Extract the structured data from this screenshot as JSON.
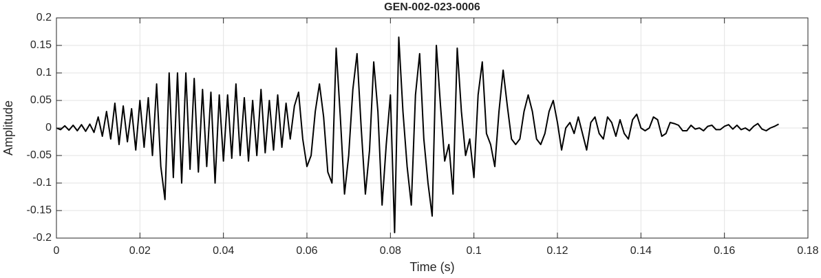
{
  "chart_data": {
    "type": "line",
    "title": "GEN-002-023-0006",
    "xlabel": "Time (s)",
    "ylabel": "Amplitude",
    "color": "#000000",
    "grid": true,
    "xlim": [
      0,
      0.18
    ],
    "xticks": [
      0,
      0.02,
      0.04,
      0.06,
      0.08,
      0.1,
      0.12,
      0.14,
      0.16,
      0.18
    ],
    "ylim": [
      -0.2,
      0.2
    ],
    "yticks": [
      -0.2,
      -0.15,
      -0.1,
      -0.05,
      0,
      0.05,
      0.1,
      0.15,
      0.2
    ],
    "x": [
      0,
      0.001,
      0.002,
      0.003,
      0.004,
      0.005,
      0.006,
      0.007,
      0.008,
      0.009,
      0.01,
      0.011,
      0.012,
      0.013,
      0.014,
      0.015,
      0.016,
      0.017,
      0.018,
      0.019,
      0.02,
      0.021,
      0.022,
      0.023,
      0.024,
      0.025,
      0.026,
      0.027,
      0.028,
      0.029,
      0.03,
      0.031,
      0.032,
      0.033,
      0.034,
      0.035,
      0.036,
      0.037,
      0.038,
      0.039,
      0.04,
      0.041,
      0.042,
      0.043,
      0.044,
      0.045,
      0.046,
      0.047,
      0.048,
      0.049,
      0.05,
      0.051,
      0.052,
      0.053,
      0.054,
      0.055,
      0.056,
      0.057,
      0.058,
      0.059,
      0.06,
      0.061,
      0.062,
      0.063,
      0.064,
      0.065,
      0.066,
      0.067,
      0.068,
      0.069,
      0.07,
      0.071,
      0.072,
      0.073,
      0.074,
      0.075,
      0.076,
      0.077,
      0.078,
      0.079,
      0.08,
      0.081,
      0.082,
      0.083,
      0.084,
      0.085,
      0.086,
      0.087,
      0.088,
      0.089,
      0.09,
      0.091,
      0.092,
      0.093,
      0.094,
      0.095,
      0.096,
      0.097,
      0.098,
      0.099,
      0.1,
      0.101,
      0.102,
      0.103,
      0.104,
      0.105,
      0.106,
      0.107,
      0.108,
      0.109,
      0.11,
      0.111,
      0.112,
      0.113,
      0.114,
      0.115,
      0.116,
      0.117,
      0.118,
      0.119,
      0.12,
      0.121,
      0.122,
      0.123,
      0.124,
      0.125,
      0.126,
      0.127,
      0.128,
      0.129,
      0.13,
      0.131,
      0.132,
      0.133,
      0.134,
      0.135,
      0.136,
      0.137,
      0.138,
      0.139,
      0.14,
      0.141,
      0.142,
      0.143,
      0.144,
      0.145,
      0.146,
      0.147,
      0.148,
      0.149,
      0.15,
      0.151,
      0.152,
      0.153,
      0.154,
      0.155,
      0.156,
      0.157,
      0.158,
      0.159,
      0.16,
      0.161,
      0.162,
      0.163,
      0.164,
      0.165,
      0.166,
      0.167,
      0.168,
      0.169,
      0.17,
      0.171,
      0.172,
      0.173
    ],
    "values": [
      0,
      -0.003,
      0.004,
      -0.004,
      0.005,
      -0.005,
      0.006,
      -0.006,
      0.007,
      -0.008,
      0.02,
      -0.015,
      0.03,
      -0.02,
      0.045,
      -0.03,
      0.04,
      -0.025,
      0.035,
      -0.04,
      0.05,
      -0.035,
      0.055,
      -0.05,
      0.08,
      -0.07,
      -0.13,
      0.1,
      -0.09,
      0.1,
      -0.1,
      0.1,
      -0.075,
      0.09,
      -0.08,
      0.07,
      -0.07,
      0.065,
      -0.1,
      0.06,
      -0.06,
      0.06,
      -0.055,
      0.08,
      -0.05,
      0.055,
      -0.06,
      0.05,
      -0.05,
      0.07,
      -0.045,
      0.05,
      -0.04,
      0.06,
      -0.035,
      0.045,
      -0.02,
      0.04,
      0.065,
      -0.02,
      -0.07,
      -0.05,
      0.03,
      0.08,
      0.02,
      -0.08,
      -0.1,
      0.145,
      0.02,
      -0.12,
      -0.05,
      0.07,
      0.135,
      0,
      -0.12,
      -0.04,
      0.12,
      0.03,
      -0.14,
      -0.03,
      0.06,
      -0.19,
      0.165,
      0.03,
      -0.07,
      -0.14,
      0.06,
      0.135,
      -0.02,
      -0.1,
      -0.16,
      0.15,
      0.04,
      -0.06,
      -0.03,
      -0.12,
      0.145,
      0.03,
      -0.05,
      -0.02,
      -0.09,
      0.06,
      0.12,
      -0.01,
      -0.03,
      -0.07,
      0.03,
      0.105,
      0.04,
      -0.02,
      -0.03,
      -0.02,
      0.03,
      0.06,
      0.03,
      -0.02,
      -0.03,
      -0.01,
      0.03,
      0.05,
      0.01,
      -0.04,
      0,
      0.01,
      -0.01,
      0.02,
      -0.01,
      -0.04,
      0.01,
      0.02,
      -0.01,
      -0.02,
      0.02,
      0.01,
      -0.015,
      0.015,
      -0.01,
      -0.02,
      0.015,
      0.025,
      0,
      -0.005,
      0,
      0.02,
      0.015,
      -0.015,
      -0.01,
      0.01,
      0.008,
      0.005,
      -0.005,
      -0.005,
      0.005,
      -0.002,
      0,
      -0.005,
      0.003,
      0.005,
      -0.003,
      -0.003,
      0.003,
      0.006,
      -0.002,
      0.005,
      -0.003,
      0,
      -0.005,
      0.003,
      0.008,
      -0.002,
      -0.005,
      0,
      0.003,
      0.007
    ]
  }
}
